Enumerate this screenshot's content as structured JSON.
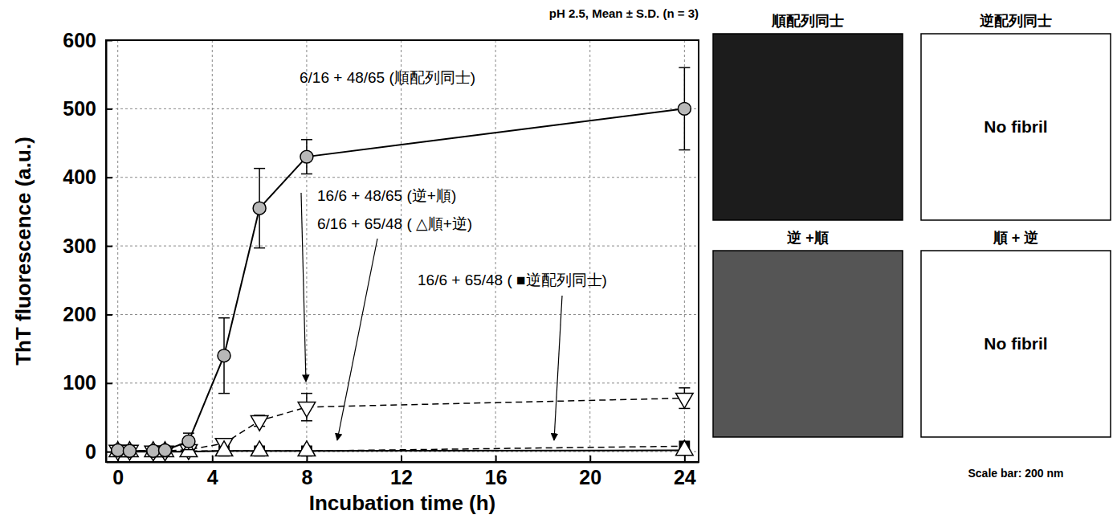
{
  "chart_data": {
    "type": "line",
    "subtitle": "pH 2.5, Mean ± S.D. (n = 3)",
    "x_label": "Incubation time (h)",
    "y_label": "ThT fluorescence (a.u.)",
    "x": [
      0,
      0.5,
      1.5,
      2,
      3,
      4.5,
      6,
      8,
      24
    ],
    "xlim": [
      -0.5,
      24.6
    ],
    "xticks": [
      0,
      4,
      8,
      12,
      16,
      20,
      24
    ],
    "ylim": [
      -15,
      600
    ],
    "yticks": [
      0,
      100,
      200,
      300,
      400,
      500,
      600
    ],
    "grid": true,
    "series": [
      {
        "name": "6/16 + 48/65 (順配列同士)",
        "color": "#b8b8b8",
        "marker": "circle",
        "line_style": "solid",
        "values": [
          2,
          1,
          1,
          2,
          15,
          140,
          355,
          430,
          500
        ],
        "errors": [
          null,
          null,
          null,
          null,
          12,
          55,
          58,
          25,
          60
        ]
      },
      {
        "name": "16/6 + 48/65 (逆+順)",
        "color": "#000000",
        "marker": "open-triangle-down",
        "line_style": "dashed",
        "values": [
          2,
          2,
          1,
          1,
          3,
          12,
          45,
          65,
          78
        ],
        "errors": [
          null,
          null,
          null,
          null,
          null,
          5,
          8,
          20,
          15
        ]
      },
      {
        "name": "6/16 + 65/48 ( △順+逆)",
        "color": "#000000",
        "marker": "open-triangle",
        "line_style": "solid",
        "values": [
          0,
          0,
          0,
          0,
          0,
          1,
          1,
          1,
          2
        ]
      },
      {
        "name": "16/6 + 65/48 ( ■逆配列同士)",
        "color": "#000000",
        "marker": "square",
        "line_style": "dashed",
        "values": [
          0,
          0,
          0,
          0,
          1,
          1,
          1,
          1,
          8
        ]
      }
    ]
  },
  "panels": [
    {
      "title": "順配列同士"
    },
    {
      "title": "逆配列同士",
      "text": "No fibril"
    },
    {
      "title": "逆 +順"
    },
    {
      "title": "順 + 逆",
      "text": "No fibril"
    }
  ],
  "scale_note": "Scale bar: 200 nm"
}
